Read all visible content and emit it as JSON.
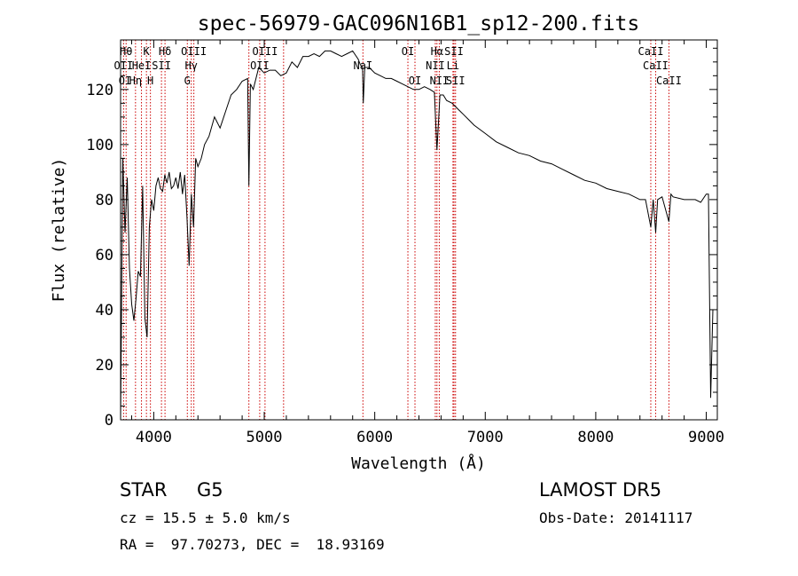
{
  "chart_data": {
    "type": "line",
    "title": "spec-56979-GAC096N16B1_sp12-200.fits",
    "xlabel": "Wavelength (Å)",
    "ylabel": "Flux (relative)",
    "xlim": [
      3700,
      9100
    ],
    "ylim": [
      0,
      138
    ],
    "xticks": [
      4000,
      5000,
      6000,
      7000,
      8000,
      9000
    ],
    "xtick_labels": [
      "4000",
      "5000",
      "6000",
      "7000",
      "8000",
      "9000"
    ],
    "yticks": [
      0,
      20,
      40,
      60,
      80,
      100,
      120
    ],
    "ytick_labels": [
      "0",
      "20",
      "40",
      "60",
      "80",
      "100",
      "120"
    ],
    "grid": false,
    "series": [
      {
        "x": [
          3700,
          3720,
          3740,
          3760,
          3780,
          3800,
          3820,
          3840,
          3860,
          3880,
          3900,
          3920,
          3940,
          3960,
          3980,
          4000,
          4020,
          4040,
          4060,
          4080,
          4100,
          4120,
          4140,
          4160,
          4180,
          4200,
          4220,
          4240,
          4260,
          4280,
          4300,
          4320,
          4340,
          4360,
          4380,
          4400,
          4430,
          4460,
          4500,
          4550,
          4600,
          4650,
          4700,
          4750,
          4800,
          4850,
          4861,
          4875,
          4900,
          4950,
          5000,
          5050,
          5100,
          5150,
          5200,
          5250,
          5300,
          5350,
          5400,
          5450,
          5500,
          5550,
          5600,
          5650,
          5700,
          5750,
          5800,
          5850,
          5870,
          5890,
          5896,
          5910,
          5950,
          6000,
          6050,
          6100,
          6150,
          6200,
          6250,
          6300,
          6350,
          6400,
          6450,
          6500,
          6540,
          6563,
          6590,
          6620,
          6650,
          6700,
          6750,
          6800,
          6850,
          6900,
          7000,
          7100,
          7200,
          7300,
          7400,
          7500,
          7600,
          7700,
          7800,
          7900,
          8000,
          8100,
          8200,
          8300,
          8400,
          8450,
          8498,
          8520,
          8542,
          8560,
          8600,
          8662,
          8680,
          8700,
          8800,
          8900,
          8950,
          9000,
          9020,
          9040,
          9060
        ],
        "y": [
          0,
          95,
          68,
          88,
          55,
          42,
          36,
          44,
          54,
          52,
          85,
          37,
          30,
          70,
          80,
          76,
          85,
          88,
          84,
          83,
          89,
          86,
          90,
          84,
          85,
          88,
          84,
          90,
          82,
          89,
          74,
          56,
          82,
          70,
          95,
          92,
          95,
          100,
          103,
          110,
          106,
          112,
          118,
          120,
          123,
          124,
          85,
          122,
          120,
          128,
          126,
          127,
          127,
          125,
          126,
          130,
          128,
          132,
          132,
          133,
          132,
          134,
          134,
          133,
          132,
          133,
          134,
          131,
          129,
          128,
          115,
          128,
          128,
          126,
          125,
          124,
          124,
          123,
          122,
          121,
          120,
          120,
          121,
          120,
          119,
          98,
          118,
          118,
          116,
          115,
          113,
          111,
          109,
          107,
          104,
          101,
          99,
          97,
          96,
          94,
          93,
          91,
          89,
          87,
          86,
          84,
          83,
          82,
          80,
          80,
          70,
          80,
          68,
          80,
          81,
          72,
          82,
          81,
          80,
          80,
          79,
          82,
          82,
          8,
          40
        ]
      }
    ],
    "line_labels": [
      {
        "text": "Hθ",
        "x": 3750,
        "row": 0
      },
      {
        "text": "K",
        "x": 3934,
        "row": 0
      },
      {
        "text": "Hδ",
        "x": 4102,
        "row": 0
      },
      {
        "text": "OIII",
        "x": 4363,
        "row": 0
      },
      {
        "text": "OIII",
        "x": 5007,
        "row": 0
      },
      {
        "text": "OI",
        "x": 6300,
        "row": 0
      },
      {
        "text": "Hα",
        "x": 6563,
        "row": 0
      },
      {
        "text": "SII",
        "x": 6717,
        "row": 0
      },
      {
        "text": "CaII",
        "x": 8498,
        "row": 0
      },
      {
        "text": "OII",
        "x": 3727,
        "row": 1
      },
      {
        "text": "HeI",
        "x": 3889,
        "row": 1
      },
      {
        "text": "SII",
        "x": 4070,
        "row": 1
      },
      {
        "text": "Hγ",
        "x": 4340,
        "row": 1
      },
      {
        "text": "OII",
        "x": 4959,
        "row": 1
      },
      {
        "text": "NaI",
        "x": 5893,
        "row": 1
      },
      {
        "text": "NII",
        "x": 6548,
        "row": 1
      },
      {
        "text": "Li",
        "x": 6708,
        "row": 1
      },
      {
        "text": "CaII",
        "x": 8542,
        "row": 1
      },
      {
        "text": "OI",
        "x": 3740,
        "row": 2
      },
      {
        "text": "Hη",
        "x": 3835,
        "row": 2
      },
      {
        "text": "H",
        "x": 3970,
        "row": 2
      },
      {
        "text": "G",
        "x": 4304,
        "row": 2
      },
      {
        "text": "OI",
        "x": 6364,
        "row": 2
      },
      {
        "text": "NII",
        "x": 6584,
        "row": 2
      },
      {
        "text": "SII",
        "x": 6731,
        "row": 2
      },
      {
        "text": "CaII",
        "x": 8662,
        "row": 2
      }
    ],
    "line_markers": [
      3727,
      3750,
      3835,
      3889,
      3934,
      3970,
      4070,
      4102,
      4304,
      4340,
      4363,
      4861,
      4959,
      5007,
      5175,
      5893,
      6300,
      6364,
      6548,
      6563,
      6584,
      6708,
      6717,
      6731,
      8498,
      8542,
      8662
    ]
  },
  "info": {
    "class_label": "STAR",
    "subclass": "G5",
    "survey": "LAMOST DR5",
    "cz": "cz = 15.5 ± 5.0 km/s",
    "obs_date": "Obs-Date: 20141117",
    "coords": "RA =  97.70273, DEC =  18.93169"
  },
  "colors": {
    "line": "#000000",
    "marker": "#cc0000",
    "background": "#ffffff"
  }
}
